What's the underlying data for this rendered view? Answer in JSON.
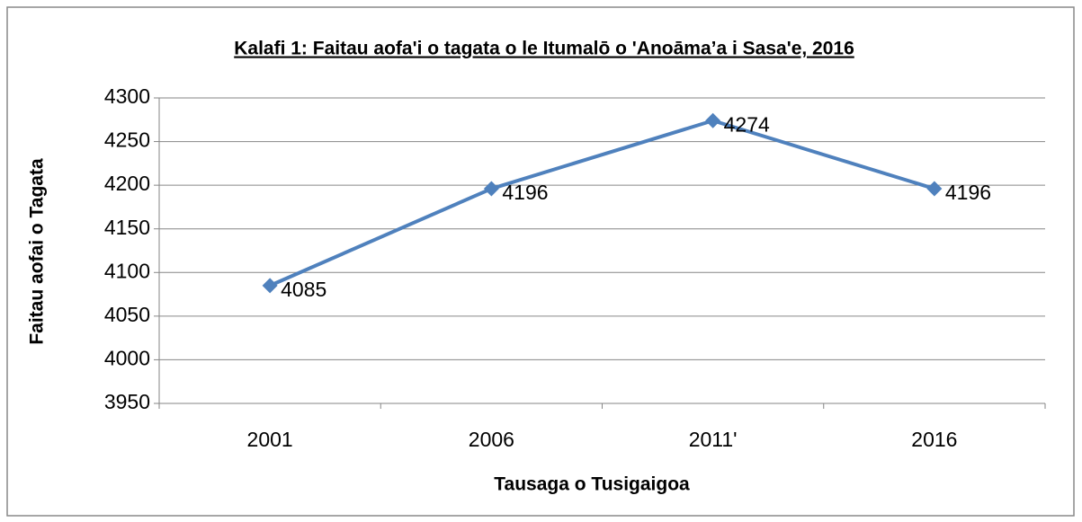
{
  "chart_data": {
    "type": "line",
    "title": "Kalafi 1: Faitau aofa'i o tagata o le Itumalō o 'Anoāma’a i Sasa'e, 2016",
    "x_label": "Tausaga o Tusigaigoa",
    "y_label": "Faitau aofai o Tagata",
    "categories": [
      "2001",
      "2006",
      "2011'",
      "2016"
    ],
    "series": [
      {
        "name": "Faitau aofai o Tagata",
        "color": "#4f81bd",
        "values": [
          4085,
          4196,
          4274,
          4196
        ]
      }
    ],
    "ylim": [
      3950,
      4300
    ],
    "yticks": [
      3950,
      4000,
      4050,
      4100,
      4150,
      4200,
      4250,
      4300
    ],
    "grid": true
  }
}
